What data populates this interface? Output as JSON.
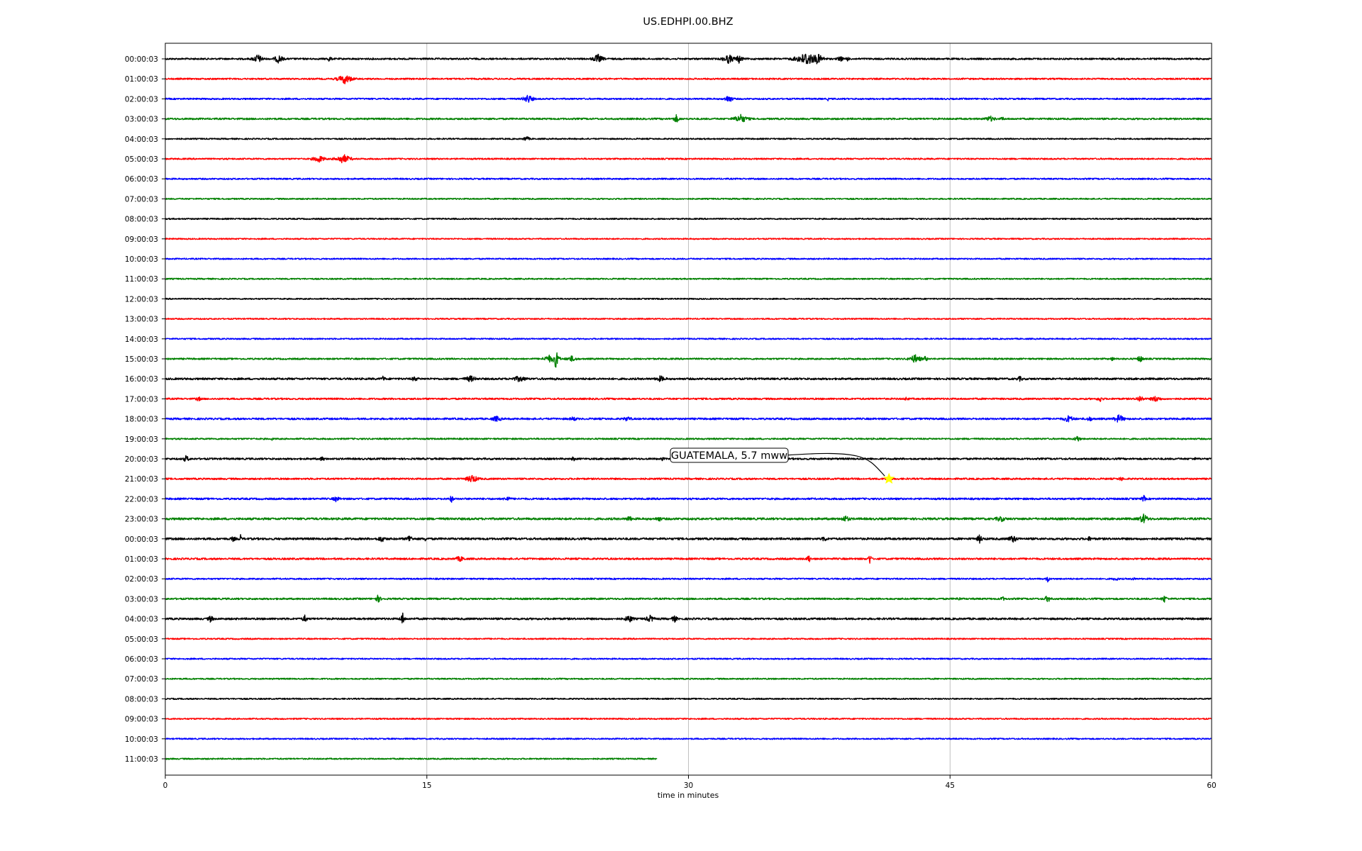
{
  "chart_data": {
    "type": "line",
    "title": "US.EDHPI.00.BHZ",
    "xlabel": "time in minutes",
    "ylabel": "",
    "xlim": [
      0,
      60
    ],
    "x_ticks": [
      "0",
      "15",
      "30",
      "45",
      "60"
    ],
    "x_tick_values": [
      0,
      15,
      30,
      45,
      60
    ],
    "grid": "vertical",
    "trace_colors": [
      "#000000",
      "#ff0000",
      "#0000ff",
      "#008000"
    ],
    "rows": [
      {
        "label": "00:00:03",
        "end_minute": 60,
        "noise": 0.28,
        "events": [
          [
            5.3,
            0.5,
            7.3
          ],
          [
            6.5,
            0.45,
            6.7
          ],
          [
            9.4,
            0.3,
            4.3
          ],
          [
            24.8,
            0.5,
            7.4
          ],
          [
            32.3,
            0.6,
            7.1
          ],
          [
            32.9,
            0.35,
            6.6
          ],
          [
            36.8,
            1.0,
            10.6
          ],
          [
            37.4,
            0.6,
            8.3
          ],
          [
            38.7,
            0.3,
            5.2
          ],
          [
            39.1,
            0.2,
            4.6
          ]
        ]
      },
      {
        "label": "01:00:03",
        "end_minute": 60,
        "noise": 0.25,
        "events": [
          [
            10.3,
            0.7,
            7.6
          ]
        ]
      },
      {
        "label": "02:00:03",
        "end_minute": 60,
        "noise": 0.25,
        "events": [
          [
            20.8,
            0.5,
            6.8
          ],
          [
            32.3,
            0.4,
            6.4
          ],
          [
            38.0,
            0.1,
            2.8
          ]
        ]
      },
      {
        "label": "03:00:03",
        "end_minute": 60,
        "noise": 0.28,
        "events": [
          [
            29.3,
            0.3,
            6.3
          ],
          [
            33.0,
            0.7,
            6.8
          ],
          [
            47.3,
            0.6,
            4.6
          ],
          [
            48.0,
            0.2,
            3.9
          ]
        ]
      },
      {
        "label": "04:00:03",
        "end_minute": 60,
        "noise": 0.22,
        "events": [
          [
            20.7,
            0.3,
            4.8
          ]
        ]
      },
      {
        "label": "05:00:03",
        "end_minute": 60,
        "noise": 0.24,
        "events": [
          [
            8.8,
            0.6,
            5.9
          ],
          [
            10.2,
            0.7,
            7.4
          ]
        ]
      },
      {
        "label": "06:00:03",
        "end_minute": 60,
        "noise": 0.24,
        "events": []
      },
      {
        "label": "07:00:03",
        "end_minute": 60,
        "noise": 0.22,
        "events": []
      },
      {
        "label": "08:00:03",
        "end_minute": 60,
        "noise": 0.22,
        "events": []
      },
      {
        "label": "09:00:03",
        "end_minute": 60,
        "noise": 0.21,
        "events": []
      },
      {
        "label": "10:00:03",
        "end_minute": 60,
        "noise": 0.22,
        "events": []
      },
      {
        "label": "11:00:03",
        "end_minute": 60,
        "noise": 0.22,
        "events": []
      },
      {
        "label": "12:00:03",
        "end_minute": 60,
        "noise": 0.21,
        "events": []
      },
      {
        "label": "13:00:03",
        "end_minute": 60,
        "noise": 0.21,
        "events": []
      },
      {
        "label": "14:00:03",
        "end_minute": 60,
        "noise": 0.22,
        "events": []
      },
      {
        "label": "15:00:03",
        "end_minute": 60,
        "noise": 0.26,
        "events": [
          [
            22.0,
            0.6,
            5.8
          ],
          [
            22.4,
            0.25,
            14.8
          ],
          [
            23.3,
            0.6,
            4.6
          ],
          [
            43.0,
            0.6,
            6.7
          ],
          [
            43.6,
            0.2,
            5.1
          ],
          [
            54.3,
            0.3,
            3.2
          ],
          [
            55.9,
            0.3,
            5.8
          ]
        ]
      },
      {
        "label": "16:00:03",
        "end_minute": 60,
        "noise": 0.32,
        "events": [
          [
            12.5,
            0.2,
            5.2
          ],
          [
            14.3,
            0.4,
            4.3
          ],
          [
            17.5,
            0.7,
            4.9
          ],
          [
            20.3,
            0.9,
            4.6
          ],
          [
            22.4,
            0.2,
            2.8
          ],
          [
            28.4,
            0.6,
            4.8
          ],
          [
            49.0,
            0.4,
            4.0
          ]
        ]
      },
      {
        "label": "17:00:03",
        "end_minute": 60,
        "noise": 0.28,
        "events": [
          [
            1.9,
            0.3,
            4.0
          ],
          [
            42.5,
            0.3,
            3.4
          ],
          [
            53.6,
            0.3,
            5.0
          ],
          [
            55.9,
            0.4,
            5.4
          ],
          [
            56.8,
            0.6,
            4.6
          ]
        ]
      },
      {
        "label": "18:00:03",
        "end_minute": 60,
        "noise": 0.3,
        "events": [
          [
            19.0,
            0.6,
            4.6
          ],
          [
            23.4,
            0.5,
            3.6
          ],
          [
            26.5,
            0.5,
            4.0
          ],
          [
            51.8,
            0.6,
            5.4
          ],
          [
            53.0,
            0.5,
            3.8
          ],
          [
            54.7,
            0.5,
            6.8
          ]
        ]
      },
      {
        "label": "19:00:03",
        "end_minute": 60,
        "noise": 0.25,
        "events": [
          [
            6.1,
            0.1,
            3.6
          ],
          [
            52.3,
            0.3,
            5.4
          ]
        ]
      },
      {
        "label": "20:00:03",
        "end_minute": 60,
        "noise": 0.3,
        "events": [
          [
            1.2,
            0.3,
            5.8
          ],
          [
            9.0,
            0.4,
            3.6
          ],
          [
            23.4,
            0.2,
            4.3
          ],
          [
            28.5,
            0.3,
            2.9
          ],
          [
            59.0,
            0.3,
            2.8
          ]
        ]
      },
      {
        "label": "21:00:03",
        "end_minute": 60,
        "noise": 0.28,
        "events": [
          [
            17.6,
            0.6,
            6.6
          ],
          [
            54.8,
            0.3,
            3.8
          ]
        ]
      },
      {
        "label": "22:00:03",
        "end_minute": 60,
        "noise": 0.3,
        "events": [
          [
            9.8,
            0.4,
            4.6
          ],
          [
            16.4,
            0.2,
            6.2
          ],
          [
            19.6,
            0.4,
            4.3
          ],
          [
            56.1,
            0.2,
            6.2
          ]
        ]
      },
      {
        "label": "23:00:03",
        "end_minute": 60,
        "noise": 0.35,
        "events": [
          [
            26.6,
            0.3,
            5.4
          ],
          [
            28.3,
            0.4,
            4.3
          ],
          [
            39.0,
            0.5,
            5.2
          ],
          [
            47.9,
            0.6,
            4.8
          ],
          [
            56.1,
            0.5,
            7.4
          ]
        ]
      },
      {
        "label": "00:00:03",
        "end_minute": 60,
        "noise": 0.35,
        "events": [
          [
            3.9,
            0.3,
            4.4
          ],
          [
            4.3,
            0.1,
            8.8
          ],
          [
            12.4,
            0.5,
            5.0
          ],
          [
            14.0,
            0.3,
            6.8
          ],
          [
            14.9,
            0.2,
            4.0
          ],
          [
            37.8,
            0.3,
            4.8
          ],
          [
            46.7,
            0.3,
            6.6
          ],
          [
            48.6,
            0.5,
            5.8
          ],
          [
            53.0,
            0.3,
            4.0
          ]
        ]
      },
      {
        "label": "01:00:03",
        "end_minute": 60,
        "noise": 0.3,
        "events": [
          [
            16.9,
            0.6,
            4.4
          ],
          [
            36.9,
            0.15,
            8.5
          ],
          [
            40.4,
            0.15,
            8.6
          ]
        ]
      },
      {
        "label": "02:00:03",
        "end_minute": 60,
        "noise": 0.24,
        "events": [
          [
            50.6,
            0.15,
            6.2
          ],
          [
            54.5,
            0.4,
            3.2
          ],
          [
            55.5,
            0.3,
            2.8
          ]
        ]
      },
      {
        "label": "03:00:03",
        "end_minute": 60,
        "noise": 0.28,
        "events": [
          [
            12.2,
            0.3,
            6.0
          ],
          [
            45.5,
            0.3,
            3.0
          ],
          [
            48.0,
            0.2,
            4.8
          ],
          [
            50.6,
            0.3,
            6.0
          ],
          [
            57.3,
            0.3,
            5.6
          ]
        ]
      },
      {
        "label": "04:00:03",
        "end_minute": 60,
        "noise": 0.32,
        "events": [
          [
            2.6,
            0.3,
            5.6
          ],
          [
            8.0,
            0.3,
            5.6
          ],
          [
            13.6,
            0.2,
            10.2
          ],
          [
            26.6,
            0.4,
            6.6
          ],
          [
            27.8,
            0.5,
            5.4
          ],
          [
            29.2,
            0.3,
            5.6
          ]
        ]
      },
      {
        "label": "05:00:03",
        "end_minute": 60,
        "noise": 0.22,
        "events": []
      },
      {
        "label": "06:00:03",
        "end_minute": 60,
        "noise": 0.22,
        "events": []
      },
      {
        "label": "07:00:03",
        "end_minute": 60,
        "noise": 0.22,
        "events": []
      },
      {
        "label": "08:00:03",
        "end_minute": 60,
        "noise": 0.22,
        "events": []
      },
      {
        "label": "09:00:03",
        "end_minute": 60,
        "noise": 0.22,
        "events": []
      },
      {
        "label": "10:00:03",
        "end_minute": 60,
        "noise": 0.22,
        "events": []
      },
      {
        "label": "11:00:03",
        "end_minute": 28.2,
        "noise": 0.22,
        "events": []
      }
    ],
    "annotations": [
      {
        "text": "GUATEMALA, 5.7 mww",
        "row_index": 21,
        "minute": 41.5,
        "marker": "star",
        "marker_color": "#ffff00"
      }
    ]
  }
}
